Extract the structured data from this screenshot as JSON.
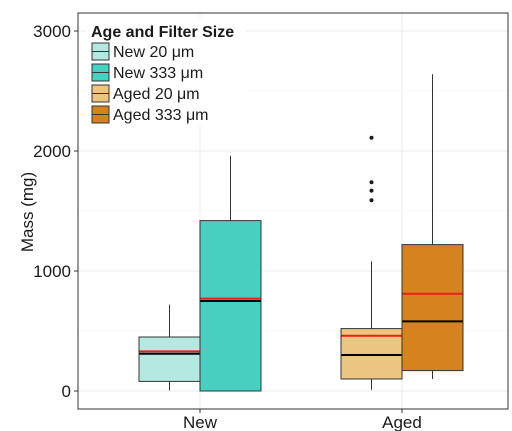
{
  "chart_data": {
    "type": "boxplot",
    "title": "",
    "xlabel": "",
    "ylabel": "Mass (mg)",
    "ylim": [
      -150,
      3150
    ],
    "y_ticks": [
      0,
      1000,
      2000,
      3000
    ],
    "y_tick_labels": [
      "0",
      "1000",
      "2000",
      "3000"
    ],
    "categories": [
      "New",
      "Aged"
    ],
    "grid": true,
    "legend": {
      "title": "Age and Filter Size",
      "placement": "top-left",
      "entries": [
        "New 20 μm",
        "New 333 μm",
        "Aged 20 μm",
        "Aged 333 μm"
      ]
    },
    "median_line_color": "#000000",
    "mean_line_color": "#e8201a",
    "series": [
      {
        "name": "New 20 μm",
        "category": "New",
        "slot": 0,
        "color": "#b4e8e0",
        "whisker_low": 5,
        "q1": 80,
        "median": 310,
        "mean": 330,
        "q3": 450,
        "whisker_high": 720,
        "outliers": []
      },
      {
        "name": "New 333 μm",
        "category": "New",
        "slot": 1,
        "color": "#48cfc0",
        "whisker_low": 0,
        "q1": 0,
        "median": 750,
        "mean": 770,
        "q3": 1420,
        "whisker_high": 1960,
        "outliers": []
      },
      {
        "name": "Aged 20 μm",
        "category": "Aged",
        "slot": 0,
        "color": "#ecc680",
        "whisker_low": 10,
        "q1": 100,
        "median": 300,
        "mean": 460,
        "q3": 520,
        "whisker_high": 1080,
        "outliers": [
          1590,
          1670,
          1740,
          2110
        ]
      },
      {
        "name": "Aged 333 μm",
        "category": "Aged",
        "slot": 1,
        "color": "#d4831f",
        "whisker_low": 100,
        "q1": 170,
        "median": 580,
        "mean": 810,
        "q3": 1220,
        "whisker_high": 2640,
        "outliers": []
      }
    ]
  }
}
